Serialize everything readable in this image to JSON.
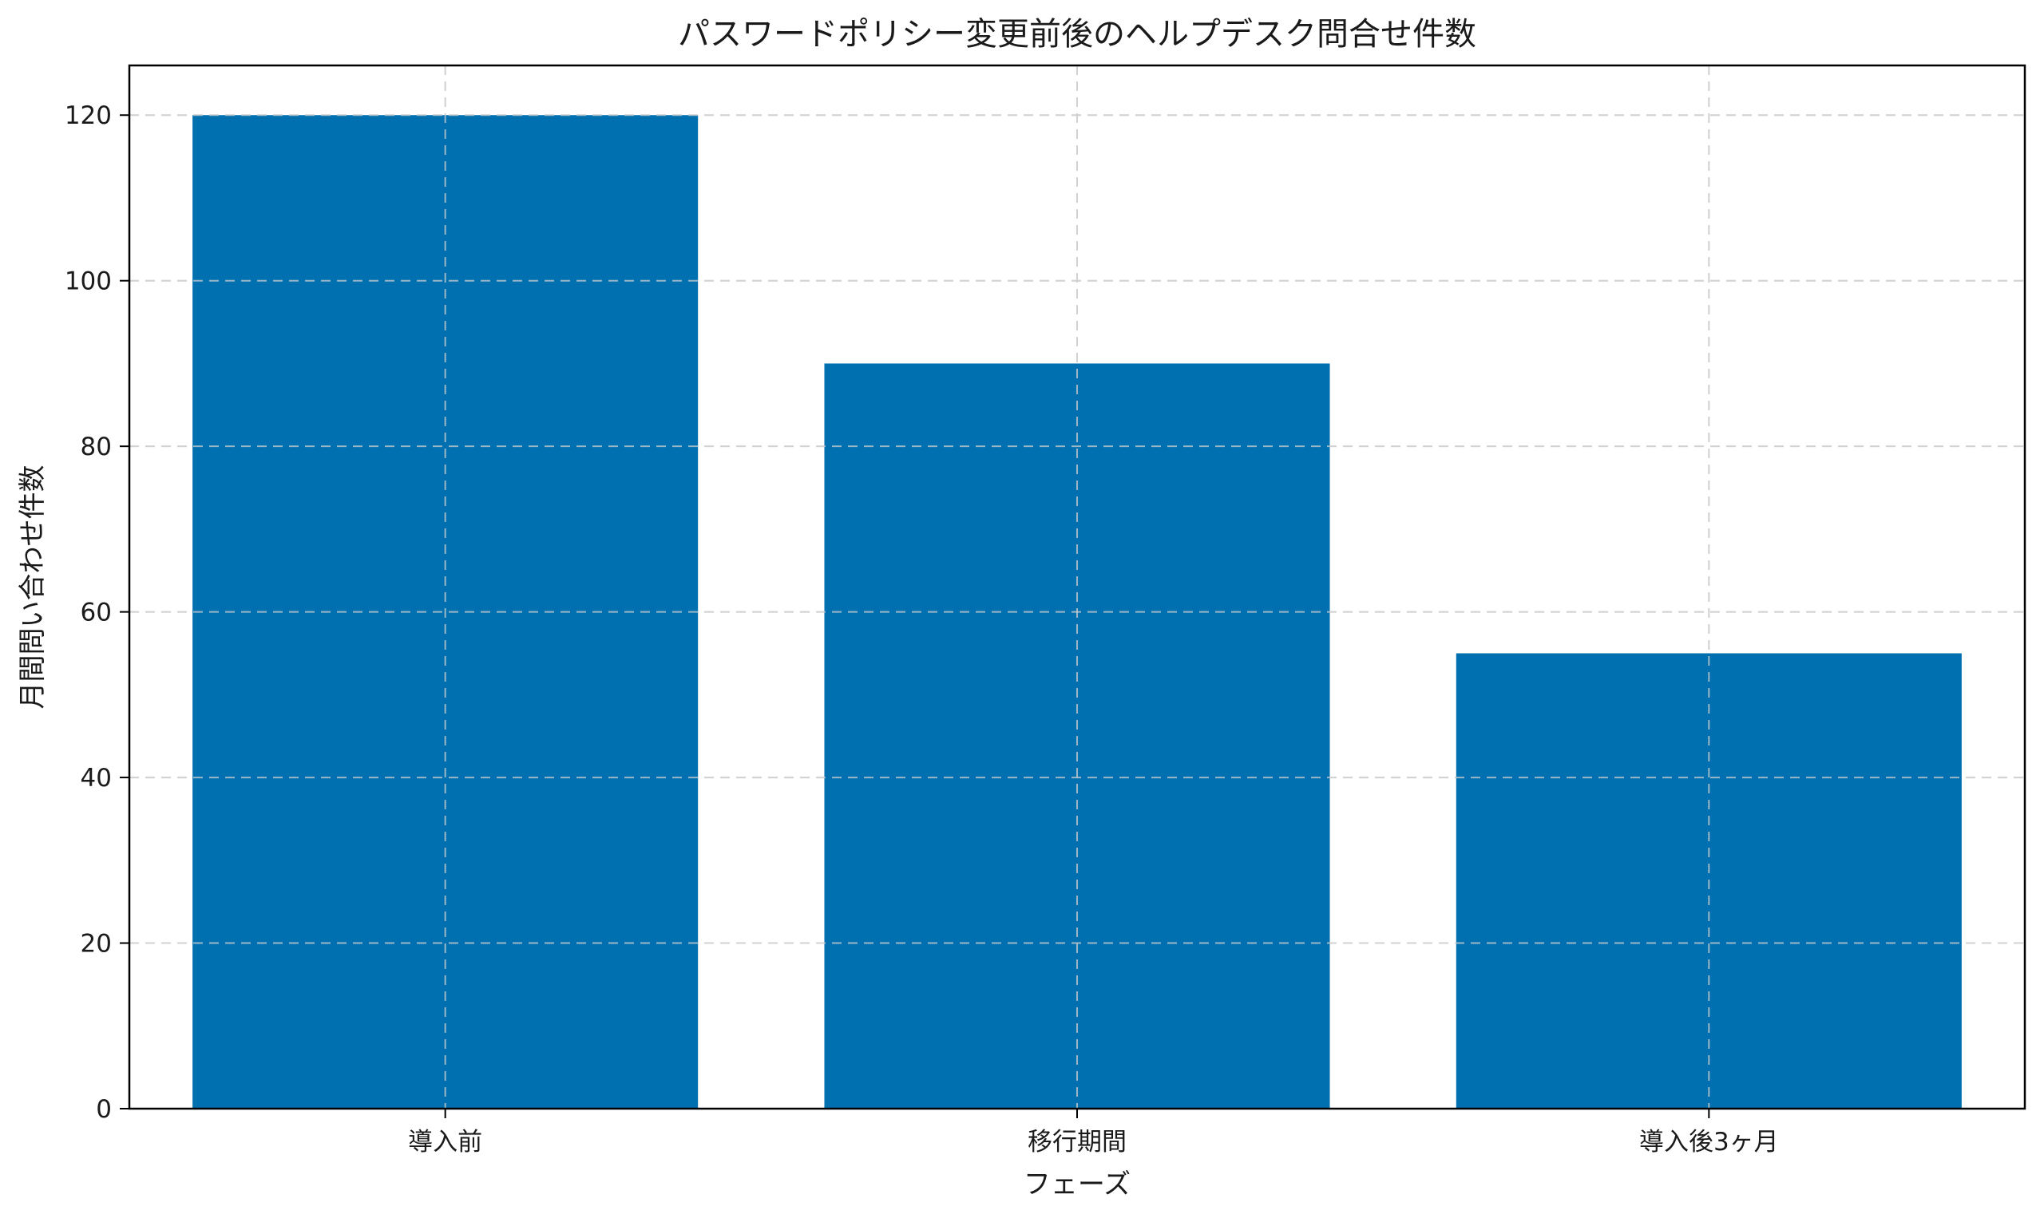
{
  "chart_data": {
    "type": "bar",
    "title": "パスワードポリシー変更前後のヘルプデスク問合せ件数",
    "xlabel": "フェーズ",
    "ylabel": "月間問い合わせ件数",
    "categories": [
      "導入前",
      "移行期間",
      "導入後3ヶ月"
    ],
    "values": [
      120,
      90,
      55
    ],
    "ylim": [
      0,
      126
    ],
    "yticks": [
      0,
      20,
      40,
      60,
      80,
      100,
      120
    ],
    "grid": true,
    "bar_color": "#0070b0"
  }
}
